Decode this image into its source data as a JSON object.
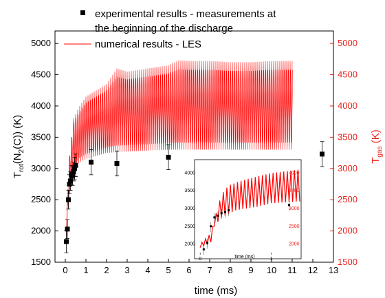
{
  "colors": {
    "experimental": "#000000",
    "numerical": "#ff0000",
    "right_axis": "#e8231f"
  },
  "legend": {
    "experimental_line1": "experimental results - measurements at",
    "experimental_line2": "the beginning of the discharge",
    "numerical": "numerical results - LES"
  },
  "axes": {
    "xlabel": "time (ms)",
    "ylabel_left": {
      "base": "T",
      "sub1": "rot",
      "mid": "(N",
      "sub2": "2",
      "tail": "(C)) (K)"
    },
    "ylabel_right": {
      "base": "T",
      "sub": "gas",
      "tail": " (K)"
    }
  },
  "chart_data": {
    "type": "scatter",
    "xlabel": "time (ms)",
    "xlim": [
      -0.5,
      13
    ],
    "xticks": [
      "0",
      "1",
      "2",
      "3",
      "4",
      "5",
      "6",
      "7",
      "8",
      "9",
      "10",
      "11",
      "12",
      "13"
    ],
    "ylim_left": [
      1500,
      5200
    ],
    "yticks_left": [
      "1500",
      "2000",
      "2500",
      "3000",
      "3500",
      "4000",
      "4500",
      "5000"
    ],
    "ylim_right": [
      1500,
      5200
    ],
    "yticks_right": [
      "1500",
      "2000",
      "2500",
      "3000",
      "3500",
      "4000",
      "4500",
      "5000"
    ],
    "series": [
      {
        "name": "experimental results - measurements at the beginning of the discharge",
        "kind": "markers",
        "marker": "square",
        "points": [
          {
            "x": 0.05,
            "y": 1830,
            "err": 180
          },
          {
            "x": 0.1,
            "y": 2030,
            "err": 150
          },
          {
            "x": 0.15,
            "y": 2500,
            "err": 150
          },
          {
            "x": 0.2,
            "y": 2750,
            "err": 150
          },
          {
            "x": 0.25,
            "y": 2800,
            "err": 150
          },
          {
            "x": 0.3,
            "y": 2900,
            "err": 150
          },
          {
            "x": 0.35,
            "y": 2880,
            "err": 150
          },
          {
            "x": 0.4,
            "y": 2950,
            "err": 150
          },
          {
            "x": 0.45,
            "y": 3000,
            "err": 180
          },
          {
            "x": 0.5,
            "y": 3050,
            "err": 180
          },
          {
            "x": 1.25,
            "y": 3100,
            "err": 200
          },
          {
            "x": 2.5,
            "y": 3080,
            "err": 200
          },
          {
            "x": 5.0,
            "y": 3180,
            "err": 200
          },
          {
            "x": 12.45,
            "y": 3230,
            "err": 200
          }
        ]
      },
      {
        "name": "numerical results - LES",
        "kind": "oscillating_band",
        "x_start": 0.05,
        "x_end": 11.05,
        "period": 0.1,
        "envelope_upper": [
          [
            0.05,
            2250
          ],
          [
            0.2,
            3200
          ],
          [
            0.4,
            3800
          ],
          [
            0.7,
            4000
          ],
          [
            1.0,
            4150
          ],
          [
            1.5,
            4250
          ],
          [
            2.0,
            4350
          ],
          [
            2.5,
            4600
          ],
          [
            3.0,
            4550
          ],
          [
            4.0,
            4600
          ],
          [
            5.0,
            4650
          ],
          [
            5.5,
            4730
          ],
          [
            6.0,
            4720
          ],
          [
            7.0,
            4720
          ],
          [
            8.0,
            4700
          ],
          [
            9.0,
            4700
          ],
          [
            10.0,
            4720
          ],
          [
            11.05,
            4720
          ]
        ],
        "envelope_lower": [
          [
            0.05,
            1900
          ],
          [
            0.2,
            2600
          ],
          [
            0.4,
            3000
          ],
          [
            0.7,
            3100
          ],
          [
            1.0,
            3150
          ],
          [
            1.5,
            3200
          ],
          [
            2.0,
            3250
          ],
          [
            3.0,
            3270
          ],
          [
            5.0,
            3300
          ],
          [
            8.0,
            3300
          ],
          [
            11.05,
            3300
          ]
        ]
      }
    ],
    "inset": {
      "xlabel": "time (ms)",
      "xticks": [
        "0",
        "1"
      ],
      "xlim": [
        -0.05,
        1.4
      ],
      "yticks_left": [
        "2000",
        "2500",
        "3000",
        "3500",
        "4000"
      ],
      "yticks_right": [
        "2000",
        "2500",
        "3000",
        "3500",
        "4000"
      ],
      "ylim": [
        1700,
        4300
      ],
      "points": [
        {
          "x": 0.05,
          "y": 1850
        },
        {
          "x": 0.1,
          "y": 2030
        },
        {
          "x": 0.15,
          "y": 2500
        },
        {
          "x": 0.2,
          "y": 2750
        },
        {
          "x": 0.25,
          "y": 2800
        },
        {
          "x": 0.3,
          "y": 2870
        },
        {
          "x": 0.35,
          "y": 2900
        },
        {
          "x": 0.4,
          "y": 2950
        },
        {
          "x": 1.25,
          "y": 3100
        }
      ]
    }
  }
}
